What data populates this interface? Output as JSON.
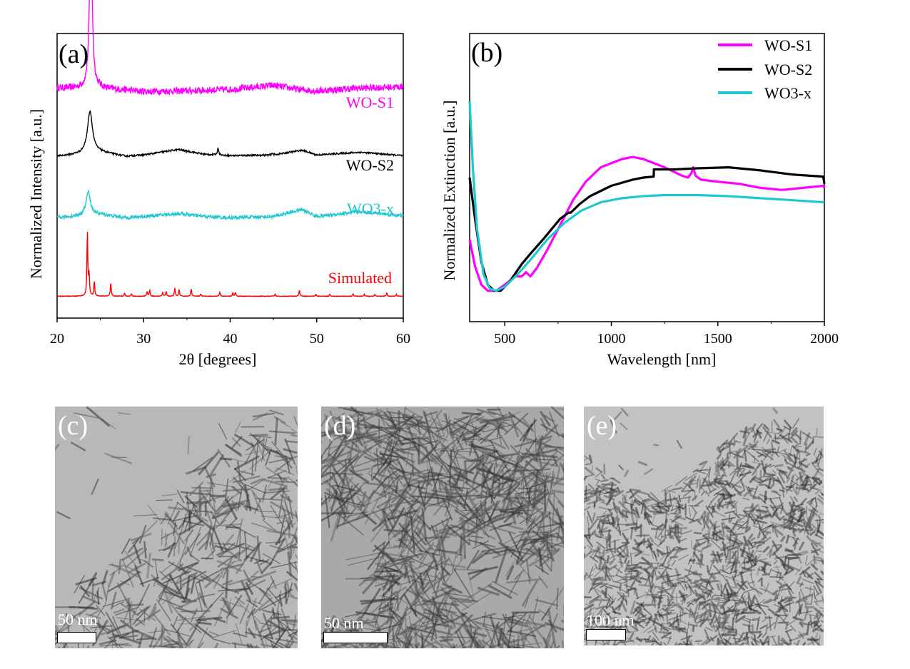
{
  "chart_data": [
    {
      "id": "a",
      "type": "line",
      "panel_label": "(a)",
      "xlabel": "2θ [degrees]",
      "ylabel": "Normalized Intensity [a.u.]",
      "xlim": [
        20,
        60
      ],
      "xticks": [
        "20",
        "30",
        "40",
        "50",
        "60"
      ],
      "yticks": [],
      "series": [
        {
          "name": "WO-S1",
          "color": "#ff00ff",
          "offset": 3.05,
          "noise": 0.05,
          "baseline": [
            [
              20,
              0
            ],
            [
              25,
              0
            ],
            [
              30,
              -0.05
            ],
            [
              35,
              -0.04
            ],
            [
              40,
              -0.02
            ],
            [
              45,
              0.04
            ],
            [
              48,
              -0.02
            ],
            [
              50,
              -0.04
            ],
            [
              55,
              0
            ],
            [
              60,
              0.02
            ]
          ],
          "peaks": [
            [
              23.9,
              2.5,
              0.18
            ]
          ]
        },
        {
          "name": "WO-S2",
          "color": "#000000",
          "offset": 2.05,
          "noise": 0.012,
          "baseline": [
            [
              20,
              0
            ],
            [
              25,
              0.06
            ],
            [
              28,
              0
            ],
            [
              30,
              0.02
            ],
            [
              34,
              0.1
            ],
            [
              37,
              0.03
            ],
            [
              40,
              0.01
            ],
            [
              45,
              0.02
            ],
            [
              48.3,
              0.09
            ],
            [
              50,
              0.02
            ],
            [
              55,
              0.06
            ],
            [
              60,
              0.01
            ]
          ],
          "peaks": [
            [
              23.8,
              0.62,
              0.35
            ],
            [
              38.6,
              0.1,
              0.1
            ],
            [
              44.9,
              0.03,
              0.08
            ]
          ]
        },
        {
          "name": "WO3-x",
          "color": "#1fc8d1",
          "offset": 1.15,
          "noise": 0.025,
          "baseline": [
            [
              20,
              0
            ],
            [
              25,
              0.05
            ],
            [
              28,
              0
            ],
            [
              30,
              0.02
            ],
            [
              34,
              0.06
            ],
            [
              37,
              0.02
            ],
            [
              40,
              0
            ],
            [
              45,
              0.02
            ],
            [
              48.3,
              0.12
            ],
            [
              50,
              0.02
            ],
            [
              55,
              0.09
            ],
            [
              60,
              0.03
            ]
          ],
          "peaks": [
            [
              23.6,
              0.35,
              0.3
            ]
          ]
        },
        {
          "name": "Simulated",
          "color": "#ff0000",
          "offset": 0.0,
          "noise": 0.004,
          "baseline": [
            [
              20,
              0
            ],
            [
              60,
              0
            ]
          ],
          "peaks": [
            [
              23.5,
              0.95,
              0.06
            ],
            [
              23.7,
              0.3,
              0.06
            ],
            [
              24.3,
              0.22,
              0.06
            ],
            [
              26.2,
              0.2,
              0.06
            ],
            [
              27.8,
              0.05,
              0.06
            ],
            [
              28.6,
              0.04,
              0.06
            ],
            [
              30.4,
              0.07,
              0.06
            ],
            [
              30.7,
              0.09,
              0.06
            ],
            [
              32.2,
              0.06,
              0.06
            ],
            [
              32.6,
              0.07,
              0.06
            ],
            [
              33.6,
              0.12,
              0.06
            ],
            [
              34.1,
              0.1,
              0.06
            ],
            [
              35.5,
              0.11,
              0.06
            ],
            [
              36.6,
              0.03,
              0.06
            ],
            [
              38.8,
              0.06,
              0.06
            ],
            [
              40.3,
              0.05,
              0.06
            ],
            [
              40.6,
              0.06,
              0.06
            ],
            [
              45.2,
              0.03,
              0.06
            ],
            [
              48.0,
              0.09,
              0.06
            ],
            [
              49.9,
              0.03,
              0.06
            ],
            [
              51.5,
              0.03,
              0.06
            ],
            [
              54.2,
              0.04,
              0.06
            ],
            [
              55.5,
              0.03,
              0.06
            ],
            [
              56.7,
              0.03,
              0.06
            ],
            [
              58.1,
              0.05,
              0.06
            ],
            [
              59.2,
              0.03,
              0.06
            ]
          ]
        }
      ],
      "ylim": [
        -0.32,
        3.85
      ]
    },
    {
      "id": "b",
      "type": "line",
      "panel_label": "(b)",
      "xlabel": "Wavelength [nm]",
      "ylabel": "Normalized Extinction [a.u.]",
      "xlim": [
        335,
        2000
      ],
      "xticks": [
        500,
        1000,
        1500,
        2000
      ],
      "ylim": [
        -0.15,
        1.25
      ],
      "legend": "top-right",
      "series": [
        {
          "name": "WO-S1",
          "color": "#ff00ff",
          "points": [
            [
              335,
              0.25
            ],
            [
              360,
              0.12
            ],
            [
              390,
              0.03
            ],
            [
              420,
              0.0
            ],
            [
              460,
              0.0
            ],
            [
              500,
              0.03
            ],
            [
              550,
              0.07
            ],
            [
              580,
              0.07
            ],
            [
              600,
              0.09
            ],
            [
              620,
              0.07
            ],
            [
              650,
              0.11
            ],
            [
              700,
              0.2
            ],
            [
              760,
              0.32
            ],
            [
              820,
              0.44
            ],
            [
              880,
              0.53
            ],
            [
              950,
              0.6
            ],
            [
              1050,
              0.64
            ],
            [
              1100,
              0.65
            ],
            [
              1150,
              0.64
            ],
            [
              1250,
              0.6
            ],
            [
              1330,
              0.56
            ],
            [
              1360,
              0.55
            ],
            [
              1375,
              0.57
            ],
            [
              1385,
              0.6
            ],
            [
              1395,
              0.56
            ],
            [
              1420,
              0.54
            ],
            [
              1500,
              0.53
            ],
            [
              1600,
              0.52
            ],
            [
              1700,
              0.5
            ],
            [
              1800,
              0.49
            ],
            [
              1900,
              0.5
            ],
            [
              1995,
              0.51
            ],
            [
              2000,
              0.5
            ]
          ]
        },
        {
          "name": "WO-S2",
          "color": "#000000",
          "points": [
            [
              335,
              0.55
            ],
            [
              360,
              0.35
            ],
            [
              390,
              0.14
            ],
            [
              420,
              0.03
            ],
            [
              450,
              0.0
            ],
            [
              480,
              0.0
            ],
            [
              520,
              0.04
            ],
            [
              580,
              0.13
            ],
            [
              620,
              0.18
            ],
            [
              680,
              0.25
            ],
            [
              760,
              0.35
            ],
            [
              800,
              0.38
            ],
            [
              810,
              0.38
            ],
            [
              850,
              0.42
            ],
            [
              900,
              0.46
            ],
            [
              1000,
              0.51
            ],
            [
              1100,
              0.54
            ],
            [
              1150,
              0.55
            ],
            [
              1199,
              0.555
            ],
            [
              1200,
              0.59
            ],
            [
              1300,
              0.59
            ],
            [
              1400,
              0.595
            ],
            [
              1550,
              0.6
            ],
            [
              1700,
              0.585
            ],
            [
              1850,
              0.565
            ],
            [
              1995,
              0.555
            ],
            [
              2000,
              0.52
            ]
          ]
        },
        {
          "name": "WO3-x",
          "color": "#1fc8d1",
          "points": [
            [
              335,
              0.92
            ],
            [
              350,
              0.6
            ],
            [
              370,
              0.3
            ],
            [
              400,
              0.08
            ],
            [
              430,
              0.01
            ],
            [
              460,
              0.0
            ],
            [
              500,
              0.02
            ],
            [
              560,
              0.08
            ],
            [
              620,
              0.15
            ],
            [
              700,
              0.25
            ],
            [
              780,
              0.33
            ],
            [
              860,
              0.39
            ],
            [
              950,
              0.43
            ],
            [
              1050,
              0.45
            ],
            [
              1150,
              0.46
            ],
            [
              1250,
              0.465
            ],
            [
              1400,
              0.465
            ],
            [
              1550,
              0.46
            ],
            [
              1700,
              0.45
            ],
            [
              1850,
              0.44
            ],
            [
              2000,
              0.43
            ]
          ]
        }
      ]
    }
  ],
  "tem_images": [
    {
      "label": "(c)",
      "scale_text": "50 nm"
    },
    {
      "label": "(d)",
      "scale_text": "50 nm"
    },
    {
      "label": "(e)",
      "scale_text": "100 nm"
    }
  ]
}
